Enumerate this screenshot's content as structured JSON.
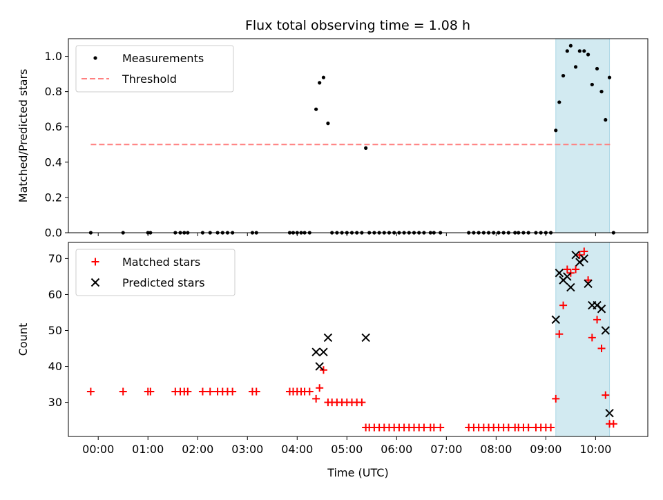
{
  "title": "Flux total observing time = 1.08 h",
  "colors": {
    "measurement": "#000000",
    "threshold": "#ff7f7f",
    "matched": "#ff0000",
    "predicted": "#000000",
    "highlight": "#add8e6"
  },
  "chart_data": [
    {
      "type": "scatter",
      "panel": "top",
      "ylabel": "Matched/Predicted stars",
      "xlabel": "",
      "xlim": [
        -0.6,
        11.05
      ],
      "ylim": [
        0,
        1.1
      ],
      "yticks": [
        0.0,
        0.2,
        0.4,
        0.6,
        0.8,
        1.0
      ],
      "ytick_labels": [
        "0.0",
        "0.2",
        "0.4",
        "0.6",
        "0.8",
        "1.0"
      ],
      "highlight_span": [
        9.2,
        10.28
      ],
      "threshold": {
        "value": 0.5,
        "x_range": [
          -0.15,
          10.33
        ]
      },
      "legend": {
        "position": "top-left",
        "entries": [
          "Measurements",
          "Threshold"
        ]
      },
      "series": [
        {
          "name": "Measurements",
          "marker": "dot",
          "points": [
            [
              -0.15,
              0
            ],
            [
              0.5,
              0
            ],
            [
              1.0,
              0
            ],
            [
              1.05,
              0
            ],
            [
              1.55,
              0
            ],
            [
              1.65,
              0
            ],
            [
              1.73,
              0
            ],
            [
              1.8,
              0
            ],
            [
              2.1,
              0
            ],
            [
              2.25,
              0
            ],
            [
              2.4,
              0
            ],
            [
              2.5,
              0
            ],
            [
              2.6,
              0
            ],
            [
              2.7,
              0
            ],
            [
              3.1,
              0
            ],
            [
              3.18,
              0
            ],
            [
              3.85,
              0
            ],
            [
              3.92,
              0
            ],
            [
              4.0,
              0
            ],
            [
              4.08,
              0
            ],
            [
              4.15,
              0
            ],
            [
              4.25,
              0
            ],
            [
              4.38,
              0.7
            ],
            [
              4.45,
              0.85
            ],
            [
              4.53,
              0.88
            ],
            [
              4.62,
              0.62
            ],
            [
              4.7,
              0
            ],
            [
              4.8,
              0
            ],
            [
              4.9,
              0
            ],
            [
              5.0,
              0
            ],
            [
              5.1,
              0
            ],
            [
              5.2,
              0
            ],
            [
              5.3,
              0
            ],
            [
              5.38,
              0.48
            ],
            [
              5.45,
              0
            ],
            [
              5.55,
              0
            ],
            [
              5.65,
              0
            ],
            [
              5.75,
              0
            ],
            [
              5.85,
              0
            ],
            [
              5.95,
              0
            ],
            [
              6.05,
              0
            ],
            [
              6.15,
              0
            ],
            [
              6.25,
              0
            ],
            [
              6.35,
              0
            ],
            [
              6.45,
              0
            ],
            [
              6.55,
              0
            ],
            [
              6.68,
              0
            ],
            [
              6.75,
              0
            ],
            [
              6.88,
              0
            ],
            [
              7.45,
              0
            ],
            [
              7.55,
              0
            ],
            [
              7.65,
              0
            ],
            [
              7.75,
              0
            ],
            [
              7.85,
              0
            ],
            [
              7.95,
              0
            ],
            [
              8.05,
              0
            ],
            [
              8.15,
              0
            ],
            [
              8.25,
              0
            ],
            [
              8.38,
              0
            ],
            [
              8.45,
              0
            ],
            [
              8.55,
              0
            ],
            [
              8.65,
              0
            ],
            [
              8.8,
              0
            ],
            [
              8.9,
              0
            ],
            [
              9.0,
              0
            ],
            [
              9.1,
              0
            ],
            [
              9.2,
              0.58
            ],
            [
              9.27,
              0.74
            ],
            [
              9.35,
              0.89
            ],
            [
              9.43,
              1.03
            ],
            [
              9.5,
              1.06
            ],
            [
              9.6,
              0.94
            ],
            [
              9.68,
              1.03
            ],
            [
              9.77,
              1.03
            ],
            [
              9.85,
              1.01
            ],
            [
              9.93,
              0.84
            ],
            [
              10.03,
              0.93
            ],
            [
              10.12,
              0.8
            ],
            [
              10.2,
              0.64
            ],
            [
              10.28,
              0.88
            ],
            [
              10.36,
              0
            ]
          ]
        }
      ]
    },
    {
      "type": "scatter",
      "panel": "bottom",
      "ylabel": "Count",
      "xlabel": "Time (UTC)",
      "xlim": [
        -0.6,
        11.05
      ],
      "ylim": [
        20.5,
        74.5
      ],
      "yticks": [
        30,
        40,
        50,
        60,
        70
      ],
      "ytick_labels": [
        "30",
        "40",
        "50",
        "60",
        "70"
      ],
      "xticks": [
        0,
        1,
        2,
        3,
        4,
        5,
        6,
        7,
        8,
        9,
        10
      ],
      "xtick_labels": [
        "00:00",
        "01:00",
        "02:00",
        "03:00",
        "04:00",
        "05:00",
        "06:00",
        "07:00",
        "08:00",
        "09:00",
        "10:00"
      ],
      "highlight_span": [
        9.2,
        10.28
      ],
      "legend": {
        "position": "top-left",
        "entries": [
          "Matched stars",
          "Predicted stars"
        ]
      },
      "series": [
        {
          "name": "Matched stars",
          "marker": "plus",
          "points": [
            [
              -0.15,
              33
            ],
            [
              0.5,
              33
            ],
            [
              1.0,
              33
            ],
            [
              1.05,
              33
            ],
            [
              1.55,
              33
            ],
            [
              1.65,
              33
            ],
            [
              1.73,
              33
            ],
            [
              1.8,
              33
            ],
            [
              2.1,
              33
            ],
            [
              2.25,
              33
            ],
            [
              2.4,
              33
            ],
            [
              2.5,
              33
            ],
            [
              2.6,
              33
            ],
            [
              2.7,
              33
            ],
            [
              3.1,
              33
            ],
            [
              3.18,
              33
            ],
            [
              3.85,
              33
            ],
            [
              3.92,
              33
            ],
            [
              4.0,
              33
            ],
            [
              4.08,
              33
            ],
            [
              4.15,
              33
            ],
            [
              4.25,
              33
            ],
            [
              4.38,
              31
            ],
            [
              4.45,
              34
            ],
            [
              4.53,
              39
            ],
            [
              4.62,
              30
            ],
            [
              4.7,
              30
            ],
            [
              4.8,
              30
            ],
            [
              4.9,
              30
            ],
            [
              5.0,
              30
            ],
            [
              5.1,
              30
            ],
            [
              5.2,
              30
            ],
            [
              5.3,
              30
            ],
            [
              5.38,
              23
            ],
            [
              5.45,
              23
            ],
            [
              5.55,
              23
            ],
            [
              5.65,
              23
            ],
            [
              5.75,
              23
            ],
            [
              5.85,
              23
            ],
            [
              5.95,
              23
            ],
            [
              6.05,
              23
            ],
            [
              6.15,
              23
            ],
            [
              6.25,
              23
            ],
            [
              6.35,
              23
            ],
            [
              6.45,
              23
            ],
            [
              6.55,
              23
            ],
            [
              6.68,
              23
            ],
            [
              6.75,
              23
            ],
            [
              6.88,
              23
            ],
            [
              7.45,
              23
            ],
            [
              7.55,
              23
            ],
            [
              7.65,
              23
            ],
            [
              7.75,
              23
            ],
            [
              7.85,
              23
            ],
            [
              7.95,
              23
            ],
            [
              8.05,
              23
            ],
            [
              8.15,
              23
            ],
            [
              8.25,
              23
            ],
            [
              8.38,
              23
            ],
            [
              8.45,
              23
            ],
            [
              8.55,
              23
            ],
            [
              8.65,
              23
            ],
            [
              8.8,
              23
            ],
            [
              8.9,
              23
            ],
            [
              9.0,
              23
            ],
            [
              9.1,
              23
            ],
            [
              9.2,
              31
            ],
            [
              9.27,
              49
            ],
            [
              9.35,
              57
            ],
            [
              9.43,
              67
            ],
            [
              9.5,
              66
            ],
            [
              9.6,
              67
            ],
            [
              9.68,
              71
            ],
            [
              9.77,
              72
            ],
            [
              9.85,
              64
            ],
            [
              9.93,
              48
            ],
            [
              10.03,
              53
            ],
            [
              10.12,
              45
            ],
            [
              10.2,
              32
            ],
            [
              10.28,
              24
            ],
            [
              10.36,
              24
            ]
          ]
        },
        {
          "name": "Predicted stars",
          "marker": "x",
          "points": [
            [
              4.38,
              44
            ],
            [
              4.45,
              40
            ],
            [
              4.53,
              44
            ],
            [
              4.62,
              48
            ],
            [
              5.38,
              48
            ],
            [
              9.2,
              53
            ],
            [
              9.27,
              66
            ],
            [
              9.35,
              64
            ],
            [
              9.43,
              65
            ],
            [
              9.5,
              62
            ],
            [
              9.6,
              71
            ],
            [
              9.68,
              69
            ],
            [
              9.77,
              70
            ],
            [
              9.85,
              63
            ],
            [
              9.93,
              57
            ],
            [
              10.03,
              57
            ],
            [
              10.12,
              56
            ],
            [
              10.2,
              50
            ],
            [
              10.28,
              27
            ]
          ]
        }
      ]
    }
  ]
}
